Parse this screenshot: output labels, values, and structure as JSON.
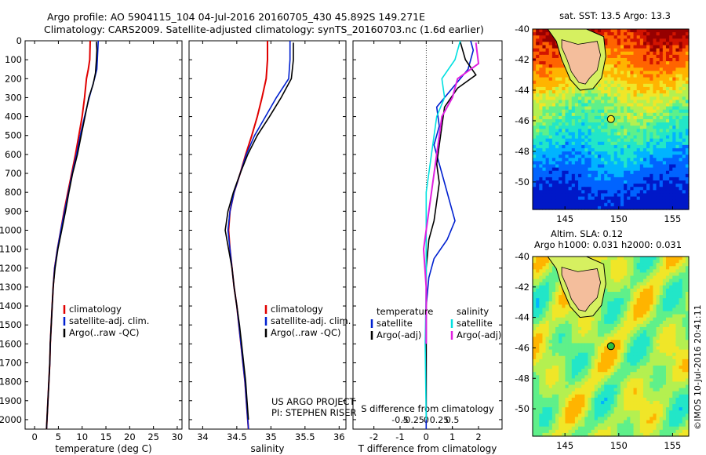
{
  "header": {
    "line1": "Argo profile: AO 5904115_104 04-Jul-2016 20160705_430 45.892S 149.271E",
    "line2": "Climatology: CARS2009. Satellite-adjusted climatology: synTS_20160703.nc (1.6d earlier)"
  },
  "colors": {
    "clim": "#e00000",
    "sat": "#0020d0",
    "argo": "#000000",
    "sat_s": "#00e0e0",
    "argo_s": "#e020e0"
  },
  "chart_data": [
    {
      "type": "line",
      "id": "temperature",
      "xlabel": "temperature (deg C)",
      "ylabel": "",
      "xlim": [
        -2,
        31
      ],
      "ylim": [
        2050,
        0
      ],
      "xticks": [
        0,
        5,
        10,
        15,
        20,
        25,
        30
      ],
      "yticks": [
        0,
        100,
        200,
        300,
        400,
        500,
        600,
        700,
        800,
        900,
        1000,
        1100,
        1200,
        1300,
        1400,
        1500,
        1600,
        1700,
        1800,
        1900,
        2000
      ],
      "legend": [
        "climatology",
        "satellite-adj. clim.",
        "Argo(..raw -QC)"
      ],
      "series": [
        {
          "name": "climatology",
          "color": "clim",
          "points": [
            [
              11.7,
              0
            ],
            [
              11.6,
              100
            ],
            [
              11.3,
              150
            ],
            [
              10.9,
              200
            ],
            [
              10.5,
              300
            ],
            [
              10.0,
              400
            ],
            [
              9.3,
              500
            ],
            [
              8.6,
              600
            ],
            [
              7.8,
              700
            ],
            [
              7.0,
              800
            ],
            [
              6.2,
              900
            ],
            [
              5.5,
              1000
            ],
            [
              4.8,
              1100
            ],
            [
              4.2,
              1200
            ],
            [
              3.9,
              1300
            ],
            [
              3.7,
              1400
            ],
            [
              3.5,
              1500
            ],
            [
              3.3,
              1600
            ],
            [
              3.2,
              1700
            ],
            [
              3.0,
              1800
            ],
            [
              2.8,
              1900
            ],
            [
              2.6,
              2000
            ],
            [
              2.5,
              2050
            ]
          ]
        },
        {
          "name": "satellite-adj. clim.",
          "color": "sat",
          "points": [
            [
              13.4,
              0
            ],
            [
              13.3,
              50
            ],
            [
              13.1,
              150
            ],
            [
              12.6,
              200
            ],
            [
              11.5,
              300
            ],
            [
              10.5,
              400
            ],
            [
              9.6,
              500
            ],
            [
              8.8,
              600
            ],
            [
              7.9,
              700
            ],
            [
              7.1,
              800
            ],
            [
              6.3,
              900
            ],
            [
              5.5,
              1000
            ],
            [
              4.8,
              1100
            ],
            [
              4.2,
              1200
            ],
            [
              3.9,
              1300
            ],
            [
              3.7,
              1400
            ],
            [
              3.5,
              1500
            ],
            [
              3.3,
              1600
            ],
            [
              3.2,
              1700
            ],
            [
              3.0,
              1800
            ],
            [
              2.8,
              1900
            ],
            [
              2.6,
              2000
            ],
            [
              2.5,
              2050
            ]
          ]
        },
        {
          "name": "Argo(..raw -QC)",
          "color": "argo",
          "points": [
            [
              13.0,
              5
            ],
            [
              13.1,
              50
            ],
            [
              13.0,
              100
            ],
            [
              12.8,
              170
            ],
            [
              12.3,
              230
            ],
            [
              11.4,
              300
            ],
            [
              10.6,
              400
            ],
            [
              9.8,
              500
            ],
            [
              9.0,
              600
            ],
            [
              8.0,
              700
            ],
            [
              7.2,
              800
            ],
            [
              6.5,
              900
            ],
            [
              5.7,
              1000
            ],
            [
              4.9,
              1100
            ],
            [
              4.3,
              1200
            ],
            [
              3.9,
              1300
            ],
            [
              3.7,
              1400
            ],
            [
              3.5,
              1500
            ],
            [
              3.3,
              1600
            ],
            [
              3.2,
              1700
            ],
            [
              3.0,
              1800
            ],
            [
              2.8,
              1900
            ],
            [
              2.6,
              2000
            ],
            [
              2.5,
              2050
            ]
          ]
        }
      ]
    },
    {
      "type": "line",
      "id": "salinity",
      "xlabel": "salinity",
      "ylabel": "",
      "xlim": [
        33.8,
        36.1
      ],
      "ylim": [
        2050,
        0
      ],
      "xticks": [
        34,
        34.5,
        35,
        35.5,
        36
      ],
      "xticklabels": [
        "34",
        "34.5",
        "35",
        "35.5",
        "36"
      ],
      "legend": [
        "climatology",
        "satellite-adj. clim.",
        "Argo(..raw -QC)"
      ],
      "annotation": [
        "US ARGO PROJECT",
        "PI: STEPHEN RISER"
      ],
      "series": [
        {
          "name": "climatology",
          "color": "clim",
          "points": [
            [
              34.95,
              0
            ],
            [
              34.95,
              100
            ],
            [
              34.93,
              200
            ],
            [
              34.87,
              300
            ],
            [
              34.8,
              400
            ],
            [
              34.72,
              500
            ],
            [
              34.63,
              600
            ],
            [
              34.55,
              700
            ],
            [
              34.46,
              800
            ],
            [
              34.4,
              900
            ],
            [
              34.38,
              1000
            ],
            [
              34.4,
              1100
            ],
            [
              34.43,
              1200
            ],
            [
              34.46,
              1300
            ],
            [
              34.5,
              1400
            ],
            [
              34.53,
              1500
            ],
            [
              34.56,
              1600
            ],
            [
              34.59,
              1700
            ],
            [
              34.62,
              1800
            ],
            [
              34.64,
              1900
            ],
            [
              34.66,
              2000
            ],
            [
              34.67,
              2050
            ]
          ]
        },
        {
          "name": "satellite-adj. clim.",
          "color": "sat",
          "points": [
            [
              35.28,
              0
            ],
            [
              35.28,
              100
            ],
            [
              35.26,
              200
            ],
            [
              35.08,
              300
            ],
            [
              34.92,
              400
            ],
            [
              34.76,
              500
            ],
            [
              34.64,
              600
            ],
            [
              34.55,
              700
            ],
            [
              34.46,
              800
            ],
            [
              34.4,
              900
            ],
            [
              34.37,
              1000
            ],
            [
              34.4,
              1100
            ],
            [
              34.43,
              1200
            ],
            [
              34.46,
              1300
            ],
            [
              34.5,
              1400
            ],
            [
              34.53,
              1500
            ],
            [
              34.56,
              1600
            ],
            [
              34.59,
              1700
            ],
            [
              34.62,
              1800
            ],
            [
              34.64,
              1900
            ],
            [
              34.66,
              2000
            ],
            [
              34.67,
              2050
            ]
          ]
        },
        {
          "name": "Argo(..raw -QC)",
          "color": "argo",
          "points": [
            [
              35.33,
              10
            ],
            [
              35.33,
              100
            ],
            [
              35.3,
              200
            ],
            [
              35.15,
              300
            ],
            [
              34.98,
              400
            ],
            [
              34.8,
              500
            ],
            [
              34.66,
              600
            ],
            [
              34.55,
              700
            ],
            [
              34.45,
              800
            ],
            [
              34.37,
              900
            ],
            [
              34.33,
              1000
            ],
            [
              34.38,
              1100
            ],
            [
              34.43,
              1200
            ],
            [
              34.46,
              1300
            ],
            [
              34.5,
              1400
            ],
            [
              34.54,
              1500
            ],
            [
              34.57,
              1600
            ],
            [
              34.6,
              1700
            ],
            [
              34.63,
              1800
            ],
            [
              34.65,
              1900
            ],
            [
              34.67,
              2000
            ]
          ]
        }
      ]
    },
    {
      "type": "line",
      "id": "difference",
      "xlabel": "T difference from climatology",
      "xlabel_top": "S difference from climatology",
      "xlim": [
        -2.8,
        2.9
      ],
      "ylim": [
        2050,
        0
      ],
      "xticks": [
        -2,
        -1,
        0,
        1,
        2
      ],
      "sticks": [
        -0.5,
        -0.25,
        0,
        0.25,
        0.5
      ],
      "sticklabels": [
        "-0.5",
        "-0.25",
        "0",
        "0.25",
        "0.5"
      ],
      "legend_t_title": "temperature",
      "legend_s_title": "salinity",
      "legend_t": [
        "satellite",
        "Argo(-adj)"
      ],
      "legend_s": [
        "satellite",
        "Argo(-adj)"
      ],
      "series": [
        {
          "name": "satellite",
          "color": "sat",
          "points": [
            [
              1.7,
              0
            ],
            [
              1.8,
              50
            ],
            [
              1.6,
              150
            ],
            [
              1.0,
              250
            ],
            [
              0.4,
              350
            ],
            [
              0.5,
              450
            ],
            [
              0.3,
              550
            ],
            [
              0.5,
              650
            ],
            [
              0.7,
              750
            ],
            [
              0.9,
              850
            ],
            [
              1.1,
              950
            ],
            [
              0.8,
              1050
            ],
            [
              0.3,
              1150
            ],
            [
              0.1,
              1250
            ],
            [
              0.0,
              1400
            ],
            [
              0.0,
              2050
            ]
          ]
        },
        {
          "name": "Argo(-adj)",
          "color": "argo",
          "points": [
            [
              1.3,
              5
            ],
            [
              1.5,
              100
            ],
            [
              1.9,
              180
            ],
            [
              1.2,
              250
            ],
            [
              0.7,
              350
            ],
            [
              0.6,
              450
            ],
            [
              0.5,
              550
            ],
            [
              0.4,
              650
            ],
            [
              0.5,
              750
            ],
            [
              0.4,
              850
            ],
            [
              0.3,
              950
            ],
            [
              0.1,
              1050
            ],
            [
              0.0,
              1200
            ],
            [
              0.0,
              2000
            ]
          ]
        },
        {
          "name": "satellite",
          "color": "sat_s",
          "points": [
            [
              0.65,
              0
            ],
            [
              0.55,
              100
            ],
            [
              0.3,
              200
            ],
            [
              0.35,
              300
            ],
            [
              0.2,
              400
            ],
            [
              0.1,
              600
            ],
            [
              0.0,
              800
            ],
            [
              0.0,
              1000
            ],
            [
              0.0,
              1300
            ],
            [
              -0.02,
              1600
            ],
            [
              0.0,
              2000
            ]
          ]
        },
        {
          "name": "Argo(-adj)",
          "color": "argo_s",
          "points": [
            [
              0.95,
              10
            ],
            [
              1.0,
              120
            ],
            [
              0.6,
              200
            ],
            [
              0.5,
              300
            ],
            [
              0.3,
              400
            ],
            [
              0.2,
              600
            ],
            [
              0.1,
              800
            ],
            [
              0.0,
              1000
            ],
            [
              -0.05,
              1100
            ],
            [
              0.0,
              1300
            ],
            [
              0.0,
              1600
            ]
          ]
        }
      ]
    },
    {
      "type": "heatmap",
      "id": "sst_map",
      "title": "sat. SST: 13.5 Argo: 13.3",
      "xlim": [
        142,
        156.5
      ],
      "ylim": [
        -51.8,
        -40
      ],
      "xticks": [
        145,
        150,
        155
      ],
      "yticks": [
        -40,
        -42,
        -44,
        -46,
        -48,
        -50
      ],
      "float": [
        149.271,
        -45.892
      ]
    },
    {
      "type": "heatmap",
      "id": "sla_map",
      "title_line1": "Altim. SLA: 0.12",
      "title_line2": "Argo h1000: 0.031 h2000: 0.031",
      "xlim": [
        142,
        156.5
      ],
      "ylim": [
        -51.8,
        -40
      ],
      "xticks": [
        145,
        150,
        155
      ],
      "yticks": [
        -40,
        -42,
        -44,
        -46,
        -48,
        -50
      ],
      "float": [
        149.271,
        -45.892
      ]
    }
  ],
  "footer": {
    "stamp": "©IMOS 10-Jul-2016 20:41:11"
  }
}
